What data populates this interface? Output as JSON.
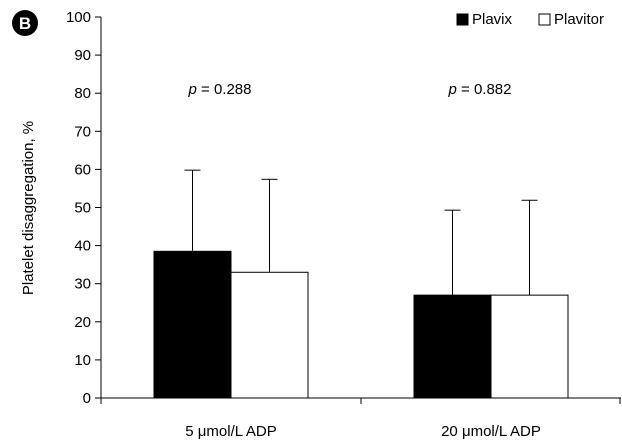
{
  "panel_label": "B",
  "chart_data": {
    "type": "bar",
    "categories": [
      "5 μmol/L ADP",
      "20 μmol/L ADP"
    ],
    "series": [
      {
        "name": "Plavix",
        "values": [
          38.5,
          27
        ],
        "error_upper": [
          21.3,
          22.3
        ],
        "color": "#000000"
      },
      {
        "name": "Plavitor",
        "values": [
          33,
          27
        ],
        "error_upper": [
          24.4,
          24.9
        ],
        "color": "#ffffff"
      }
    ],
    "annotations": [
      {
        "category_index": 0,
        "italic": "p",
        "text": " = 0.288"
      },
      {
        "category_index": 1,
        "italic": "p",
        "text": " = 0.882"
      }
    ],
    "ylabel": "Platelet disaggregation, %",
    "xlabel": "",
    "ylim": [
      0,
      100
    ],
    "yticks": [
      0,
      10,
      20,
      30,
      40,
      50,
      60,
      70,
      80,
      90,
      100
    ],
    "grid": false,
    "legend_position": "top-right"
  }
}
